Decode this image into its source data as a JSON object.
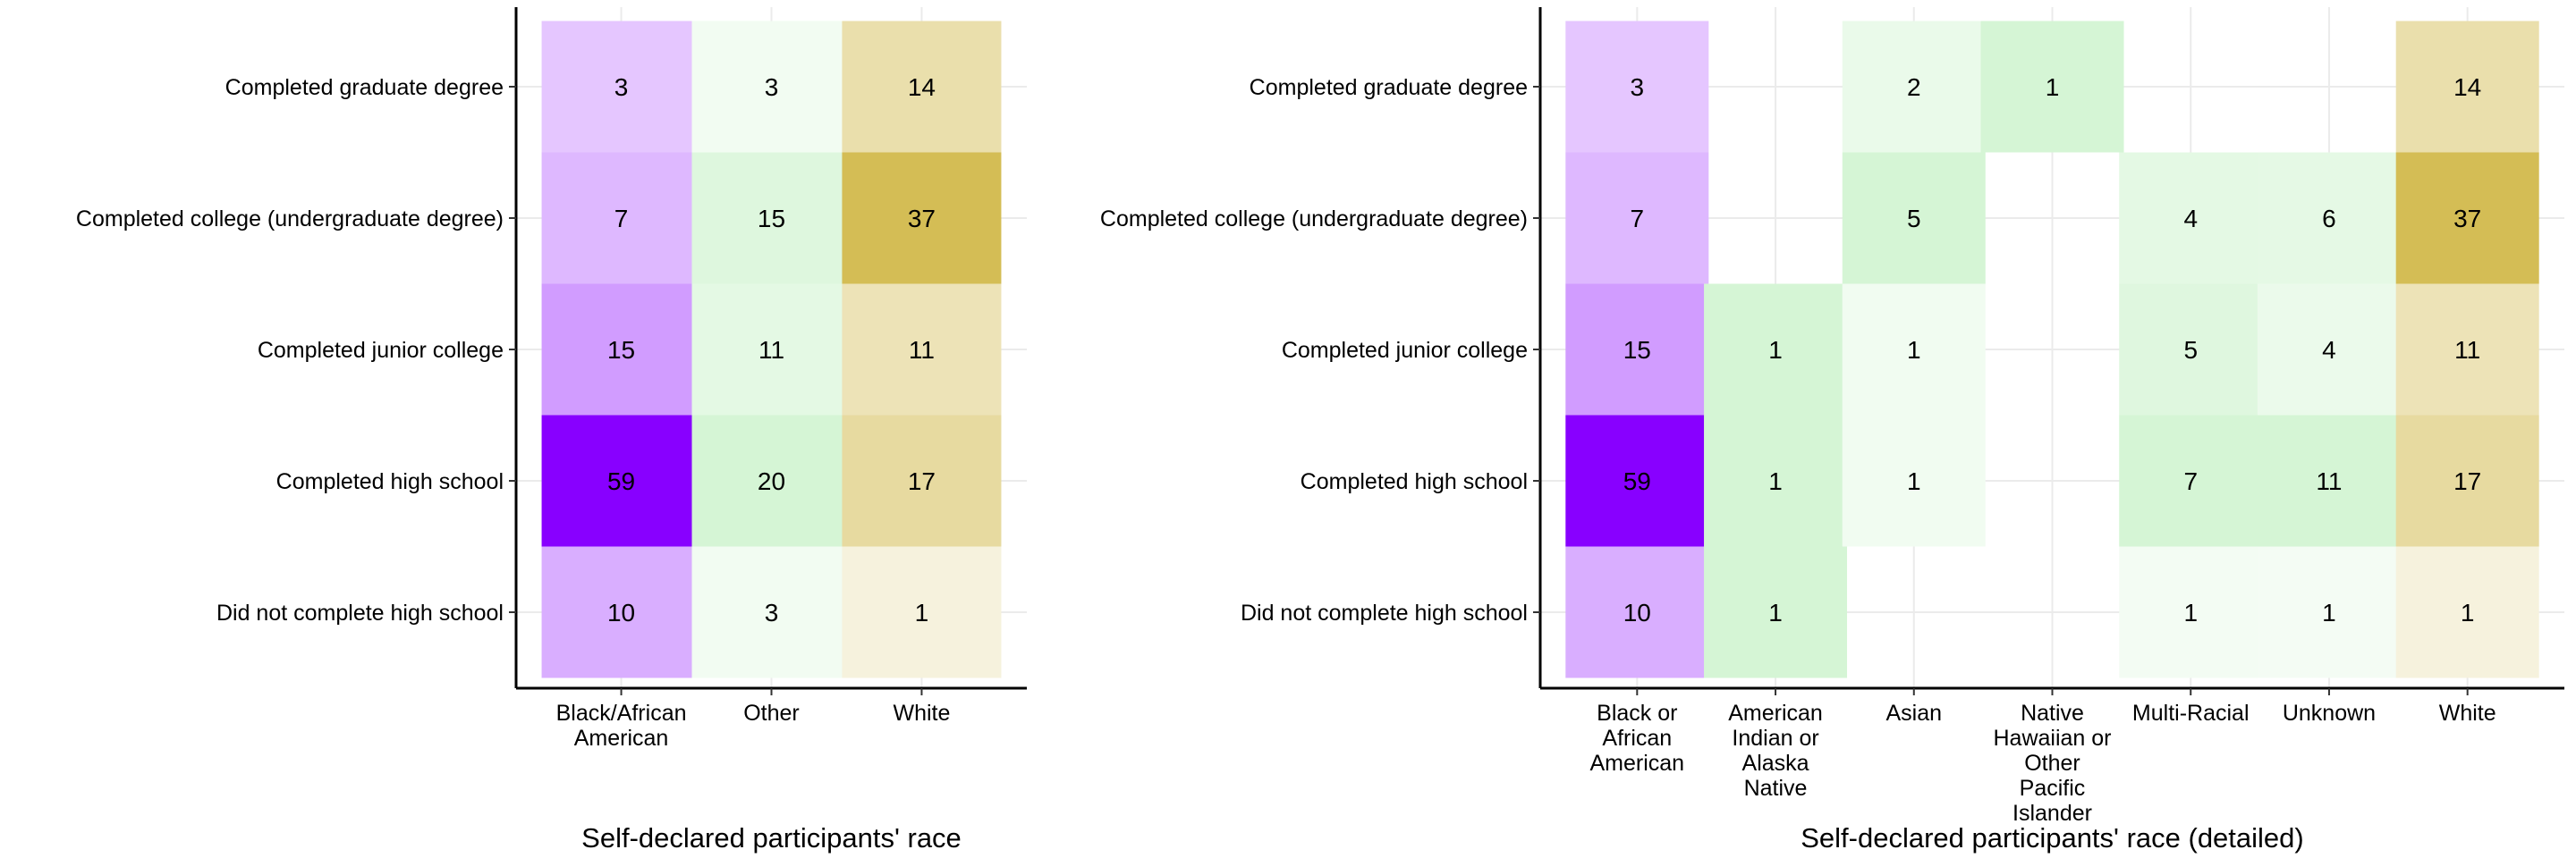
{
  "chart_data": [
    {
      "type": "heatmap",
      "xlabel": "Self-declared participants' race",
      "categories": [
        "Black/African American",
        "Other",
        "White"
      ],
      "rows": [
        "Completed graduate degree",
        "Completed college (undergraduate degree)",
        "Completed junior college",
        "Completed high school",
        "Did not complete high school"
      ],
      "values": [
        [
          3,
          3,
          14
        ],
        [
          7,
          15,
          37
        ],
        [
          15,
          11,
          11
        ],
        [
          59,
          20,
          17
        ],
        [
          10,
          3,
          1
        ]
      ],
      "grid": true,
      "legend": "none"
    },
    {
      "type": "heatmap",
      "xlabel": "Self-declared participants' race (detailed)",
      "categories": [
        "Black or African American",
        "American Indian or Alaska Native",
        "Asian",
        "Native Hawaiian or Other Pacific Islander",
        "Multi-Racial",
        "Unknown",
        "White"
      ],
      "rows": [
        "Completed graduate degree",
        "Completed college (undergraduate degree)",
        "Completed junior college",
        "Completed high school",
        "Did not complete high school"
      ],
      "values": [
        [
          3,
          null,
          2,
          1,
          null,
          null,
          14
        ],
        [
          7,
          null,
          5,
          null,
          4,
          6,
          37
        ],
        [
          15,
          1,
          1,
          null,
          5,
          4,
          11
        ],
        [
          59,
          1,
          1,
          null,
          7,
          11,
          17
        ],
        [
          10,
          1,
          null,
          null,
          1,
          1,
          1
        ]
      ],
      "grid": true,
      "legend": "none"
    }
  ],
  "colors": {
    "black_group": "#8800ff",
    "other_group": "#d5f5d5",
    "white_group": "#d4bd55",
    "background": "#ffffff",
    "grid": "#ebebeb"
  }
}
